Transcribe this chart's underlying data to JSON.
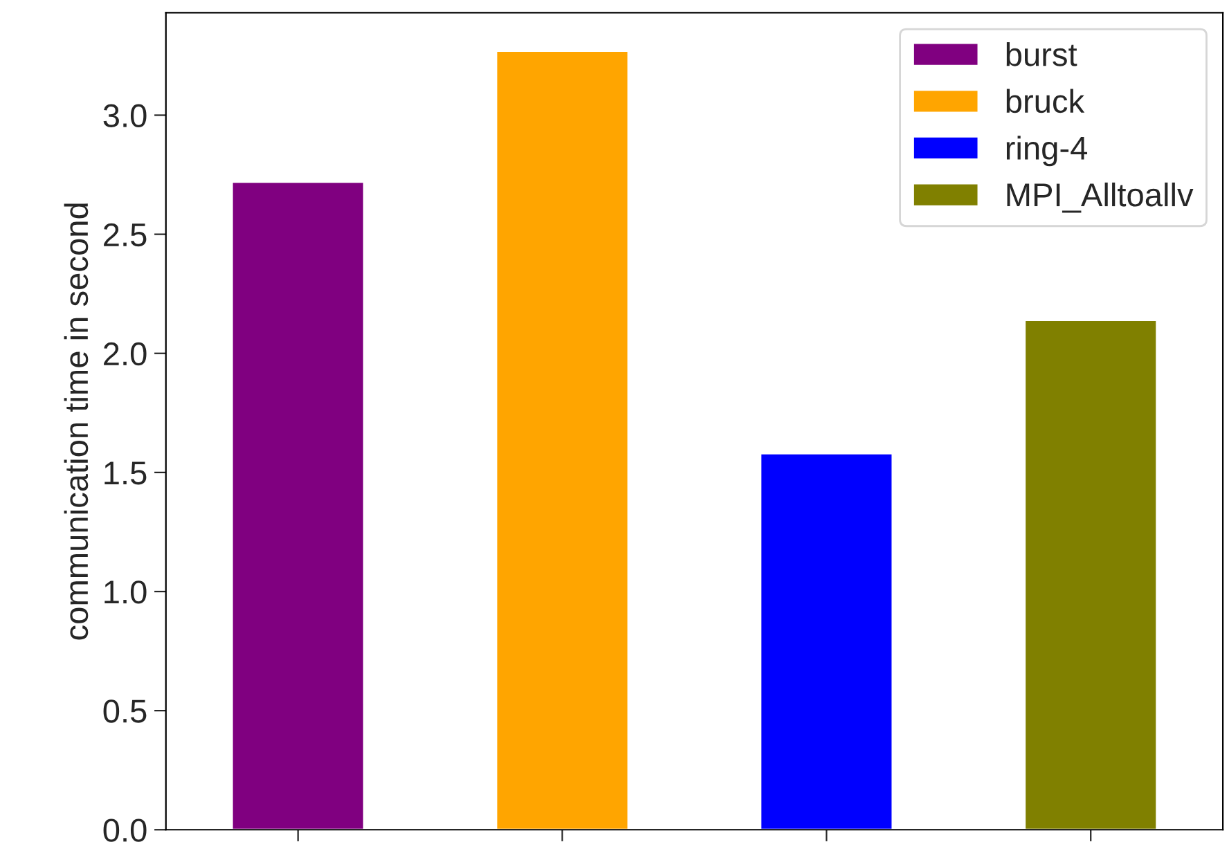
{
  "chart_data": {
    "type": "bar",
    "ylabel": "communication time in second",
    "categories": [
      null,
      null,
      null,
      null
    ],
    "series": [
      {
        "name": "burst",
        "color": "#800080",
        "values": [
          2.72,
          null,
          null,
          null
        ]
      },
      {
        "name": "bruck",
        "color": "#ffa500",
        "values": [
          null,
          3.27,
          null,
          null
        ]
      },
      {
        "name": "ring-4",
        "color": "#0000ff",
        "values": [
          null,
          null,
          1.58,
          null
        ]
      },
      {
        "name": "MPI_Alltoallv",
        "color": "#808000",
        "values": [
          null,
          null,
          null,
          2.14
        ]
      }
    ],
    "ylim": [
      0,
      3.43
    ],
    "yticks": [
      {
        "value": 0,
        "label": "0.0"
      },
      0.5,
      {
        "value": 1,
        "label": "1.0"
      },
      1.5,
      {
        "value": 2,
        "label": "2.0"
      },
      2.5,
      {
        "value": 3,
        "label": "3.0"
      }
    ],
    "grid": false,
    "legend": "top right"
  }
}
